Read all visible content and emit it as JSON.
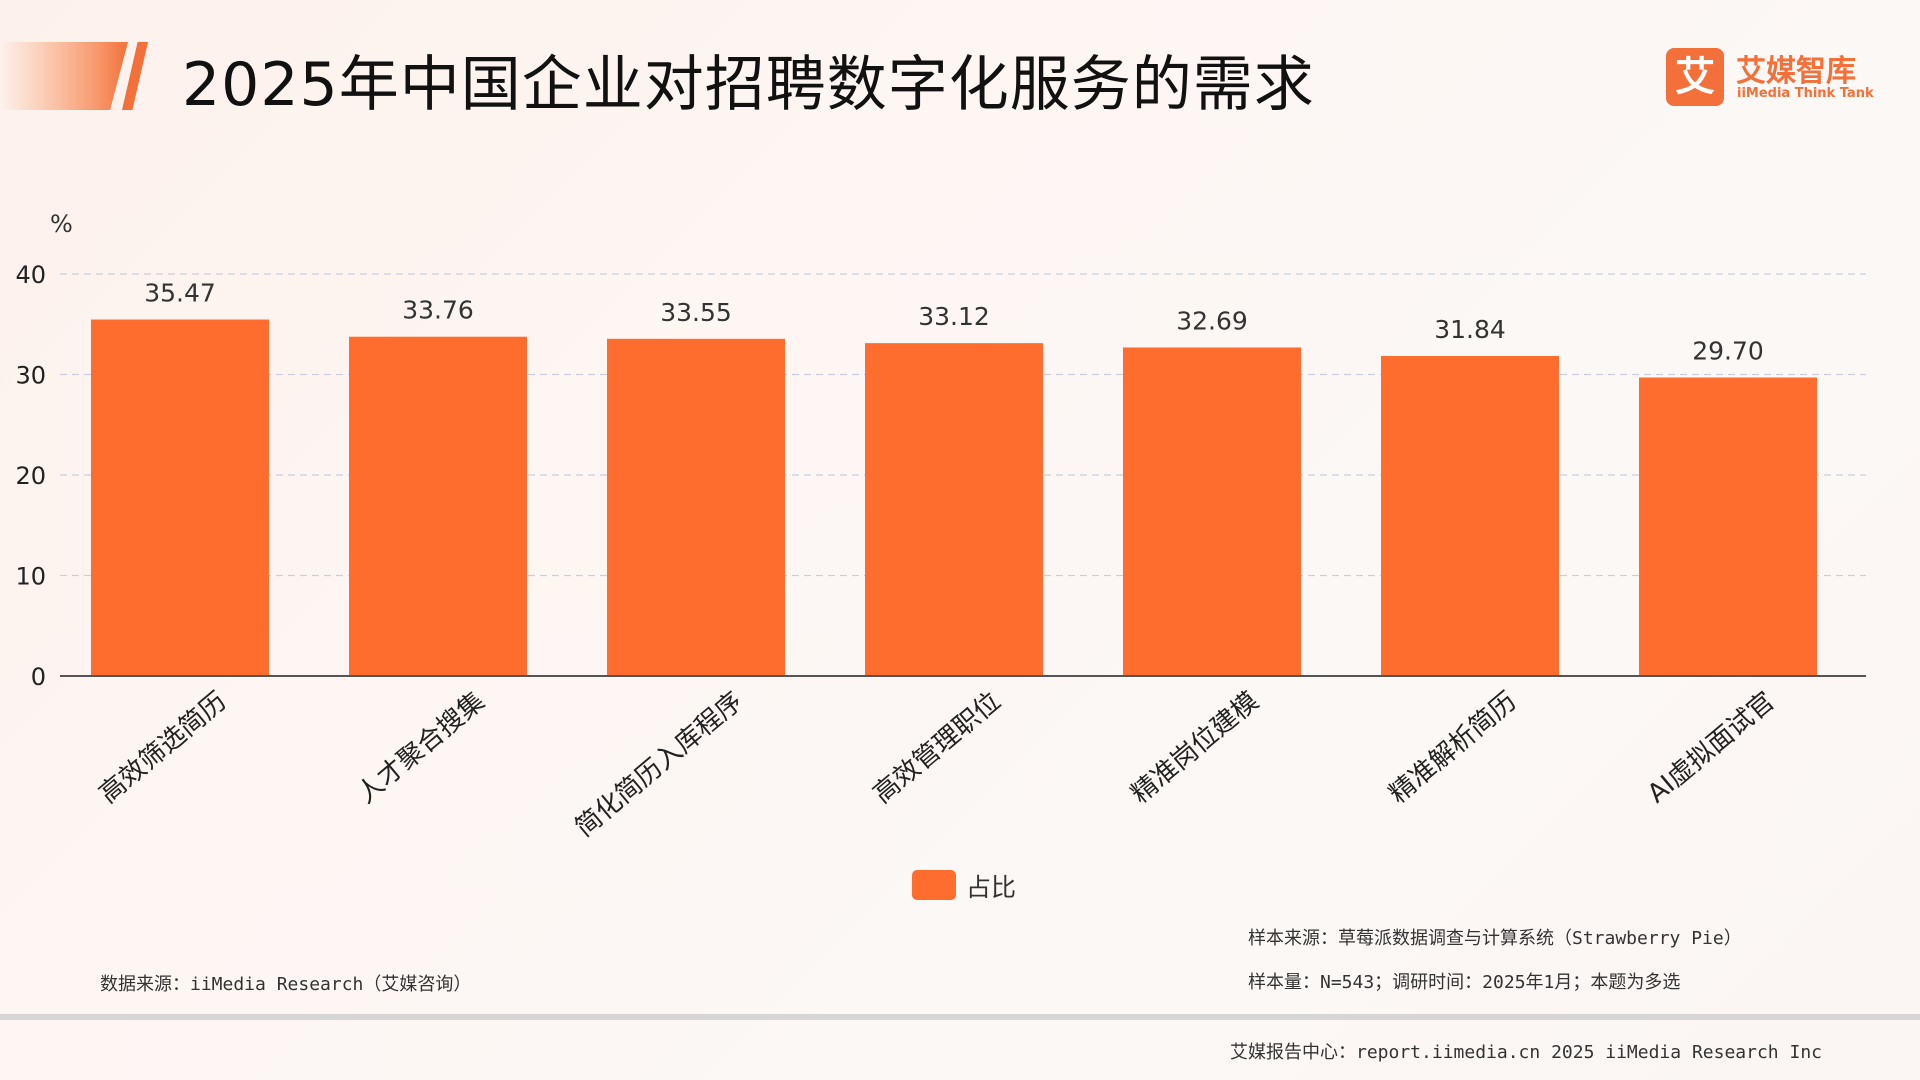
{
  "header": {
    "title": "2025年中国企业对招聘数字化服务的需求",
    "logo_cn": "艾媒智库",
    "logo_en": "iiMedia Think Tank",
    "logo_mark": "艾"
  },
  "chart_data": {
    "type": "bar",
    "title": "2025年中国企业对招聘数字化服务的需求",
    "ylabel": "%",
    "xlabel": "",
    "ylim": [
      0,
      40
    ],
    "yticks": [
      0,
      10,
      20,
      30,
      40
    ],
    "grid": true,
    "legend_position": "bottom-center",
    "categories": [
      "高效筛选简历",
      "人才聚合搜集",
      "简化简历入库程序",
      "高效管理职位",
      "精准岗位建模",
      "精准解析简历",
      "AI虚拟面试官"
    ],
    "value_labels": [
      "35.47",
      "33.76",
      "33.55",
      "33.12",
      "32.69",
      "31.84",
      "29.70"
    ],
    "series": [
      {
        "name": "占比",
        "values": [
          35.47,
          33.76,
          33.55,
          33.12,
          32.69,
          31.84,
          29.7
        ],
        "color": "#fe6d2e"
      }
    ]
  },
  "notes": {
    "sample_source": "样本来源：草莓派数据调查与计算系统（Strawberry Pie）",
    "sample_size": "样本量：N=543；调研时间：2025年1月；本题为多选",
    "data_source": "数据来源：iiMedia Research（艾媒咨询）"
  },
  "footer": {
    "text": "艾媒报告中心：report.iimedia.cn  2025 iiMedia Research Inc"
  },
  "colors": {
    "accent": "#f4703a",
    "bar": "#fe6d2e"
  }
}
